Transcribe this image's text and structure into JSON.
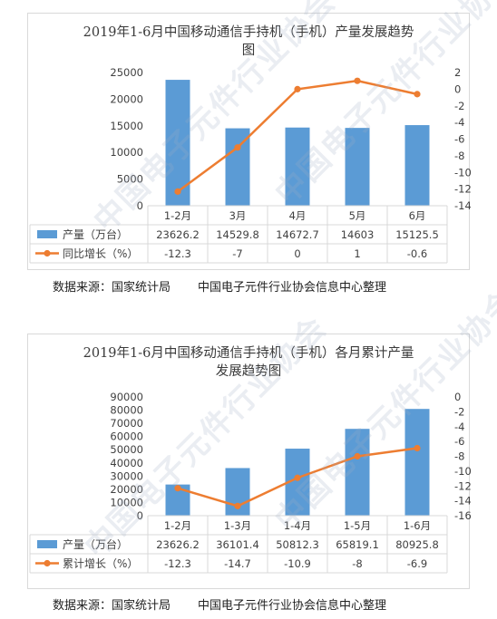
{
  "watermark": "中国电子元件行业协会",
  "chart_data": [
    {
      "type": "bar",
      "title": "2019年1-6月中国移动通信手持机（手机）产量发展趋势图",
      "categories": [
        "1-2月",
        "3月",
        "4月",
        "5月",
        "6月"
      ],
      "series": [
        {
          "name": "产量（万台）",
          "type": "bar",
          "axis": "left",
          "color": "#5b9bd5",
          "values": [
            23626.2,
            14529.8,
            14672.7,
            14603,
            15125.5
          ],
          "labels": [
            "23626.2",
            "14529.8",
            "14672.7",
            "14603",
            "15125.5"
          ]
        },
        {
          "name": "同比增长（%）",
          "type": "line",
          "axis": "right",
          "color": "#ed7d31",
          "values": [
            -12.3,
            -7,
            0,
            1,
            -0.6
          ],
          "labels": [
            "-12.3",
            "-7",
            "0",
            "1",
            "-0.6"
          ]
        }
      ],
      "y_left": {
        "min": 0,
        "max": 25000,
        "step": 5000
      },
      "y_right": {
        "min": -14,
        "max": 2,
        "step": 2
      },
      "grid": false,
      "legend": "data-table"
    },
    {
      "type": "bar",
      "title": "2019年1-6月中国移动通信手持机（手机）各月累计产量发展趋势图",
      "categories": [
        "1-2月",
        "1-3月",
        "1-4月",
        "1-5月",
        "1-6月"
      ],
      "series": [
        {
          "name": "产量（万台）",
          "type": "bar",
          "axis": "left",
          "color": "#5b9bd5",
          "values": [
            23626.2,
            36101.4,
            50812.3,
            65819.1,
            80925.8
          ],
          "labels": [
            "23626.2",
            "36101.4",
            "50812.3",
            "65819.1",
            "80925.8"
          ]
        },
        {
          "name": "累计增长（%）",
          "type": "line",
          "axis": "right",
          "color": "#ed7d31",
          "values": [
            -12.3,
            -14.7,
            -10.9,
            -8,
            -6.9
          ],
          "labels": [
            "-12.3",
            "-14.7",
            "-10.9",
            "-8",
            "-6.9"
          ]
        }
      ],
      "y_left": {
        "min": 0,
        "max": 90000,
        "step": 10000
      },
      "y_right": {
        "min": -16,
        "max": 0,
        "step": 2
      },
      "grid": false,
      "legend": "data-table"
    }
  ],
  "charts_text": [
    {
      "title_line1": "2019年1-6月中国移动通信手持机（手机）产量发展趋势",
      "title_line2": "图"
    },
    {
      "title_line1": "2019年1-6月中国移动通信手持机（手机）各月累计产量",
      "title_line2": "发展趋势图"
    }
  ],
  "source": {
    "label": "数据来源：国家统计局",
    "org": "中国电子元件行业协会信息中心整理"
  }
}
